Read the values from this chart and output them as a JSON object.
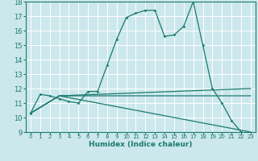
{
  "title": "",
  "xlabel": "Humidex (Indice chaleur)",
  "bg_color": "#cce8ec",
  "grid_color": "#ffffff",
  "line_color": "#1a7a6e",
  "xlim": [
    -0.5,
    23.5
  ],
  "ylim": [
    9,
    18
  ],
  "xticks": [
    0,
    1,
    2,
    3,
    4,
    5,
    6,
    7,
    8,
    9,
    10,
    11,
    12,
    13,
    14,
    15,
    16,
    17,
    18,
    19,
    20,
    21,
    22,
    23
  ],
  "yticks": [
    9,
    10,
    11,
    12,
    13,
    14,
    15,
    16,
    17,
    18
  ],
  "line1_x": [
    0,
    1,
    2,
    3,
    4,
    5,
    6,
    7,
    8,
    9,
    10,
    11,
    12,
    13,
    14,
    15,
    16,
    17,
    18,
    19,
    20,
    21,
    22,
    23
  ],
  "line1_y": [
    10.3,
    11.6,
    11.5,
    11.3,
    11.1,
    11.0,
    11.8,
    11.8,
    13.6,
    15.4,
    16.9,
    17.2,
    17.4,
    17.4,
    15.6,
    15.7,
    16.3,
    18.0,
    15.0,
    12.0,
    11.0,
    9.8,
    9.0,
    8.8
  ],
  "line2_x": [
    0,
    3,
    23
  ],
  "line2_y": [
    10.3,
    11.5,
    12.0
  ],
  "line3_x": [
    0,
    3,
    23
  ],
  "line3_y": [
    10.3,
    11.5,
    11.5
  ],
  "line4_x": [
    0,
    3,
    23
  ],
  "line4_y": [
    10.3,
    11.5,
    9.0
  ]
}
